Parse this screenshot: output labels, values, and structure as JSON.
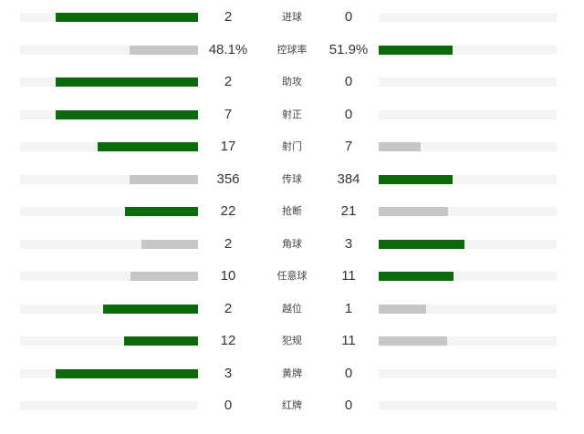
{
  "colors": {
    "leading": "#0b6b0b",
    "trailing": "#c6c6c6",
    "track": "#f4f4f4"
  },
  "stats": [
    {
      "label": "进球",
      "home": "2",
      "away": "0",
      "home_value": 2,
      "away_value": 0
    },
    {
      "label": "控球率",
      "home": "48.1%",
      "away": "51.9%",
      "home_value": 48.1,
      "away_value": 51.9
    },
    {
      "label": "助攻",
      "home": "2",
      "away": "0",
      "home_value": 2,
      "away_value": 0
    },
    {
      "label": "射正",
      "home": "7",
      "away": "0",
      "home_value": 7,
      "away_value": 0
    },
    {
      "label": "射门",
      "home": "17",
      "away": "7",
      "home_value": 17,
      "away_value": 7
    },
    {
      "label": "传球",
      "home": "356",
      "away": "384",
      "home_value": 356,
      "away_value": 384
    },
    {
      "label": "抢断",
      "home": "22",
      "away": "21",
      "home_value": 22,
      "away_value": 21
    },
    {
      "label": "角球",
      "home": "2",
      "away": "3",
      "home_value": 2,
      "away_value": 3
    },
    {
      "label": "任意球",
      "home": "10",
      "away": "11",
      "home_value": 10,
      "away_value": 11
    },
    {
      "label": "越位",
      "home": "2",
      "away": "1",
      "home_value": 2,
      "away_value": 1
    },
    {
      "label": "犯规",
      "home": "12",
      "away": "11",
      "home_value": 12,
      "away_value": 11
    },
    {
      "label": "黄牌",
      "home": "3",
      "away": "0",
      "home_value": 3,
      "away_value": 0
    },
    {
      "label": "红牌",
      "home": "0",
      "away": "0",
      "home_value": 0,
      "away_value": 0
    }
  ]
}
